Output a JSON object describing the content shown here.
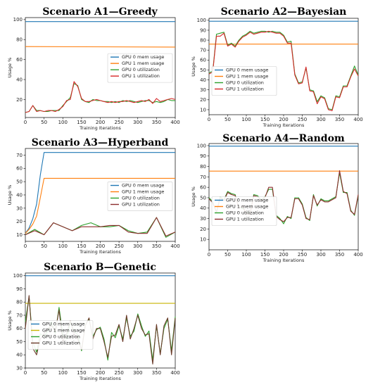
{
  "chart_data": [
    {
      "type": "line",
      "title": "Scenario A1—Greedy",
      "xlabel": "Training Iterations",
      "ylabel": "Usage %",
      "xlim": [
        0,
        400
      ],
      "ylim": [
        2,
        102
      ],
      "xticks": [
        0,
        50,
        100,
        150,
        200,
        250,
        300,
        350,
        400
      ],
      "yticks": [
        20,
        40,
        60,
        80,
        100
      ],
      "legend": "center-right",
      "series": [
        {
          "name": "GPU 0 mem usage",
          "color": "#1f77b4",
          "x": [
            0,
            400
          ],
          "y": [
            98,
            98
          ]
        },
        {
          "name": "GPU 1 mem usage",
          "color": "#ff7f0e",
          "x": [
            0,
            400
          ],
          "y": [
            73,
            72.5
          ]
        },
        {
          "name": "GPU 0 utilization",
          "color": "#2ca02c",
          "x": [
            0,
            10,
            20,
            30,
            40,
            50,
            60,
            70,
            80,
            90,
            100,
            110,
            120,
            130,
            140,
            150,
            160,
            170,
            180,
            190,
            200,
            210,
            220,
            230,
            240,
            250,
            260,
            270,
            280,
            290,
            300,
            310,
            320,
            330,
            340,
            350,
            360,
            370,
            380,
            390,
            400
          ],
          "y": [
            7,
            8,
            14,
            9,
            9,
            8,
            8,
            9,
            9,
            9,
            14,
            18,
            22,
            36,
            34,
            20,
            18,
            17,
            20,
            19,
            19,
            18,
            18,
            17,
            18,
            17,
            19,
            18,
            19,
            18,
            17,
            18,
            19,
            19,
            17,
            18,
            17,
            18,
            20,
            19,
            19
          ]
        },
        {
          "name": "GPU 1 utilization",
          "color": "#d62728",
          "x": [
            0,
            10,
            20,
            30,
            40,
            50,
            60,
            70,
            80,
            90,
            100,
            110,
            120,
            130,
            140,
            150,
            160,
            170,
            180,
            190,
            200,
            210,
            220,
            230,
            240,
            250,
            260,
            270,
            280,
            290,
            300,
            310,
            320,
            330,
            340,
            350,
            360,
            370,
            380,
            390,
            400
          ],
          "y": [
            7,
            8,
            14,
            8,
            9,
            8,
            9,
            9,
            8,
            10,
            13,
            19,
            20,
            38,
            33,
            21,
            18,
            18,
            19,
            20,
            19,
            18,
            17,
            18,
            17,
            18,
            18,
            19,
            18,
            17,
            18,
            19,
            18,
            20,
            16,
            21,
            18,
            19,
            20,
            21,
            20
          ]
        }
      ]
    },
    {
      "type": "line",
      "title": "Scenario A2—Bayesian",
      "xlabel": "Training Iterations",
      "ylabel": "Usage %",
      "xlim": [
        0,
        400
      ],
      "ylim": [
        5,
        102
      ],
      "xticks": [
        0,
        50,
        100,
        150,
        200,
        250,
        300,
        350,
        400
      ],
      "yticks": [
        10,
        20,
        30,
        40,
        50,
        60,
        70,
        80,
        90,
        100
      ],
      "legend": "bottom-left",
      "series": [
        {
          "name": "GPU 0 mem usage",
          "color": "#1f77b4",
          "x": [
            0,
            400
          ],
          "y": [
            99,
            99
          ]
        },
        {
          "name": "GPU 1 mem usage",
          "color": "#ff7f0e",
          "x": [
            0,
            400
          ],
          "y": [
            76,
            76
          ]
        },
        {
          "name": "GPU 0 utilization",
          "color": "#2ca02c",
          "x": [
            0,
            10,
            20,
            30,
            40,
            50,
            60,
            70,
            80,
            90,
            100,
            110,
            120,
            130,
            140,
            150,
            160,
            170,
            180,
            190,
            200,
            210,
            220,
            230,
            240,
            250,
            260,
            270,
            280,
            290,
            300,
            310,
            320,
            330,
            340,
            350,
            360,
            370,
            380,
            390,
            400
          ],
          "y": [
            47,
            49,
            86,
            87,
            88,
            75,
            77,
            74,
            80,
            84,
            86,
            89,
            87,
            88,
            89,
            89,
            88,
            89,
            88,
            88,
            85,
            78,
            79,
            46,
            37,
            38,
            52,
            30,
            29,
            18,
            24,
            22,
            11,
            10,
            24,
            23,
            34,
            34,
            44,
            54,
            45
          ]
        },
        {
          "name": "GPU 1 utilization",
          "color": "#d62728",
          "x": [
            0,
            10,
            20,
            30,
            40,
            50,
            60,
            70,
            80,
            90,
            100,
            110,
            120,
            130,
            140,
            150,
            160,
            170,
            180,
            190,
            200,
            210,
            220,
            230,
            240,
            250,
            260,
            270,
            280,
            290,
            300,
            310,
            320,
            330,
            340,
            350,
            360,
            370,
            380,
            390,
            400
          ],
          "y": [
            46,
            48,
            84,
            84,
            87,
            74,
            76,
            73,
            79,
            83,
            85,
            88,
            86,
            87,
            88,
            88,
            89,
            88,
            87,
            87,
            84,
            77,
            77,
            45,
            36,
            37,
            53,
            29,
            28,
            16,
            23,
            21,
            10,
            9,
            23,
            22,
            33,
            33,
            43,
            51,
            44
          ]
        }
      ]
    },
    {
      "type": "line",
      "title": "Scenario A3—Hyperband",
      "xlabel": "Training Iterations",
      "ylabel": "Usage %",
      "xlim": [
        0,
        400
      ],
      "ylim": [
        5,
        75
      ],
      "xticks": [
        0,
        50,
        100,
        150,
        200,
        250,
        300,
        350,
        400
      ],
      "yticks": [
        10,
        20,
        30,
        40,
        50,
        60,
        70
      ],
      "legend": "center-right",
      "series": [
        {
          "name": "GPU 0 mem usage",
          "color": "#1f77b4",
          "x": [
            0,
            10,
            20,
            30,
            40,
            50,
            400
          ],
          "y": [
            11,
            15,
            22,
            33,
            55,
            72,
            72
          ]
        },
        {
          "name": "GPU 1 mem usage",
          "color": "#ff7f0e",
          "x": [
            0,
            10,
            20,
            30,
            40,
            50,
            400
          ],
          "y": [
            11,
            14,
            18,
            24,
            38,
            52.5,
            52.5
          ]
        },
        {
          "name": "GPU 0 utilization",
          "color": "#2ca02c",
          "x": [
            0,
            25,
            50,
            75,
            100,
            125,
            150,
            175,
            200,
            225,
            250,
            275,
            300,
            325,
            350,
            375,
            400
          ],
          "y": [
            10,
            14,
            10,
            19,
            16,
            13,
            17,
            19,
            16,
            16,
            17,
            13,
            11,
            12,
            23,
            8,
            12
          ]
        },
        {
          "name": "GPU 1 utilization",
          "color": "#8c2d2d",
          "x": [
            0,
            25,
            50,
            75,
            100,
            125,
            150,
            175,
            200,
            225,
            250,
            275,
            300,
            325,
            350,
            375,
            400
          ],
          "y": [
            10,
            13,
            10,
            19,
            16,
            13,
            16,
            16,
            16,
            17,
            17,
            12,
            11,
            11,
            23,
            9,
            12
          ]
        }
      ]
    },
    {
      "type": "line",
      "title": "Scenario A4—Random",
      "xlabel": "Training Iterations",
      "ylabel": "Usage %",
      "xlim": [
        0,
        400
      ],
      "ylim": [
        0,
        102
      ],
      "xticks": [
        0,
        50,
        100,
        150,
        200,
        250,
        300,
        350,
        400
      ],
      "yticks": [
        10,
        20,
        30,
        40,
        50,
        60,
        70,
        80,
        90,
        100
      ],
      "legend": "bottom-left",
      "series": [
        {
          "name": "GPU 0 mem usage",
          "color": "#1f77b4",
          "x": [
            0,
            400
          ],
          "y": [
            99.5,
            99.5
          ]
        },
        {
          "name": "GPU 1 mem usage",
          "color": "#ff7f0e",
          "x": [
            0,
            400
          ],
          "y": [
            75.5,
            75.5
          ]
        },
        {
          "name": "GPU 0 utilization",
          "color": "#2ca02c",
          "x": [
            0,
            10,
            20,
            30,
            40,
            50,
            60,
            70,
            80,
            90,
            100,
            110,
            120,
            130,
            140,
            150,
            160,
            170,
            180,
            190,
            200,
            210,
            220,
            230,
            240,
            250,
            260,
            270,
            280,
            290,
            300,
            310,
            320,
            330,
            340,
            350,
            360,
            370,
            380,
            390,
            400
          ],
          "y": [
            50,
            46,
            36,
            51,
            48,
            56,
            54,
            53,
            41,
            40,
            36,
            35,
            53,
            52,
            48,
            51,
            58,
            58,
            33,
            30,
            25,
            32,
            30,
            50,
            50,
            44,
            31,
            28,
            53,
            42,
            49,
            47,
            47,
            49,
            51,
            74,
            55,
            55,
            38,
            33,
            52
          ]
        },
        {
          "name": "GPU 1 utilization",
          "color": "#8c2d2d",
          "x": [
            0,
            10,
            20,
            30,
            40,
            50,
            60,
            70,
            80,
            90,
            100,
            110,
            120,
            130,
            140,
            150,
            160,
            170,
            180,
            190,
            200,
            210,
            220,
            230,
            240,
            250,
            260,
            270,
            280,
            290,
            300,
            310,
            320,
            330,
            340,
            350,
            360,
            370,
            380,
            390,
            400
          ],
          "y": [
            49,
            45,
            36,
            50,
            47,
            55,
            53,
            52,
            40,
            42,
            35,
            34,
            52,
            51,
            47,
            50,
            60,
            60,
            32,
            29,
            27,
            31,
            31,
            49,
            49,
            43,
            30,
            29,
            52,
            43,
            48,
            46,
            46,
            48,
            50,
            76,
            56,
            54,
            37,
            34,
            53
          ]
        }
      ]
    },
    {
      "type": "line",
      "title": "Scenario B—Genetic",
      "xlabel": "Training Iterations",
      "ylabel": "Usage %",
      "xlim": [
        0,
        400
      ],
      "ylim": [
        30,
        102
      ],
      "xticks": [
        0,
        50,
        100,
        150,
        200,
        250,
        300,
        350,
        400
      ],
      "yticks": [
        30,
        40,
        50,
        60,
        70,
        80,
        90,
        100
      ],
      "legend": "bottom-left",
      "series": [
        {
          "name": "GPU 0 mem usage",
          "color": "#1f77b4",
          "x": [
            0,
            400
          ],
          "y": [
            100,
            100
          ]
        },
        {
          "name": "GPU 1 mem usage",
          "color": "#c8b400",
          "x": [
            0,
            400
          ],
          "y": [
            79,
            79
          ]
        },
        {
          "name": "GPU 0 utilization",
          "color": "#2ca02c",
          "x": [
            0,
            10,
            20,
            30,
            40,
            50,
            60,
            70,
            80,
            90,
            100,
            110,
            120,
            130,
            140,
            150,
            160,
            170,
            180,
            190,
            200,
            210,
            220,
            230,
            240,
            250,
            260,
            270,
            280,
            290,
            300,
            310,
            320,
            330,
            340,
            350,
            360,
            370,
            380,
            390,
            400
          ],
          "y": [
            65,
            84,
            50,
            42,
            56,
            54,
            58,
            65,
            56,
            76,
            55,
            52,
            65,
            58,
            55,
            43,
            63,
            67,
            54,
            59,
            61,
            52,
            36,
            57,
            53,
            62,
            52,
            68,
            54,
            58,
            71,
            62,
            54,
            58,
            36,
            62,
            41,
            60,
            67,
            43,
            69
          ]
        },
        {
          "name": "GPU 1 utilization",
          "color": "#6b3b2a",
          "x": [
            0,
            10,
            20,
            30,
            40,
            50,
            60,
            70,
            80,
            90,
            100,
            110,
            120,
            130,
            140,
            150,
            160,
            170,
            180,
            190,
            200,
            210,
            220,
            230,
            240,
            250,
            260,
            270,
            280,
            290,
            300,
            310,
            320,
            330,
            340,
            350,
            360,
            370,
            380,
            390,
            400
          ],
          "y": [
            60,
            85,
            45,
            40,
            52,
            56,
            60,
            62,
            58,
            74,
            50,
            56,
            66,
            56,
            52,
            44,
            62,
            68,
            52,
            60,
            60,
            50,
            38,
            54,
            55,
            63,
            50,
            70,
            52,
            60,
            70,
            60,
            55,
            56,
            33,
            63,
            40,
            62,
            68,
            40,
            68
          ]
        }
      ]
    }
  ]
}
